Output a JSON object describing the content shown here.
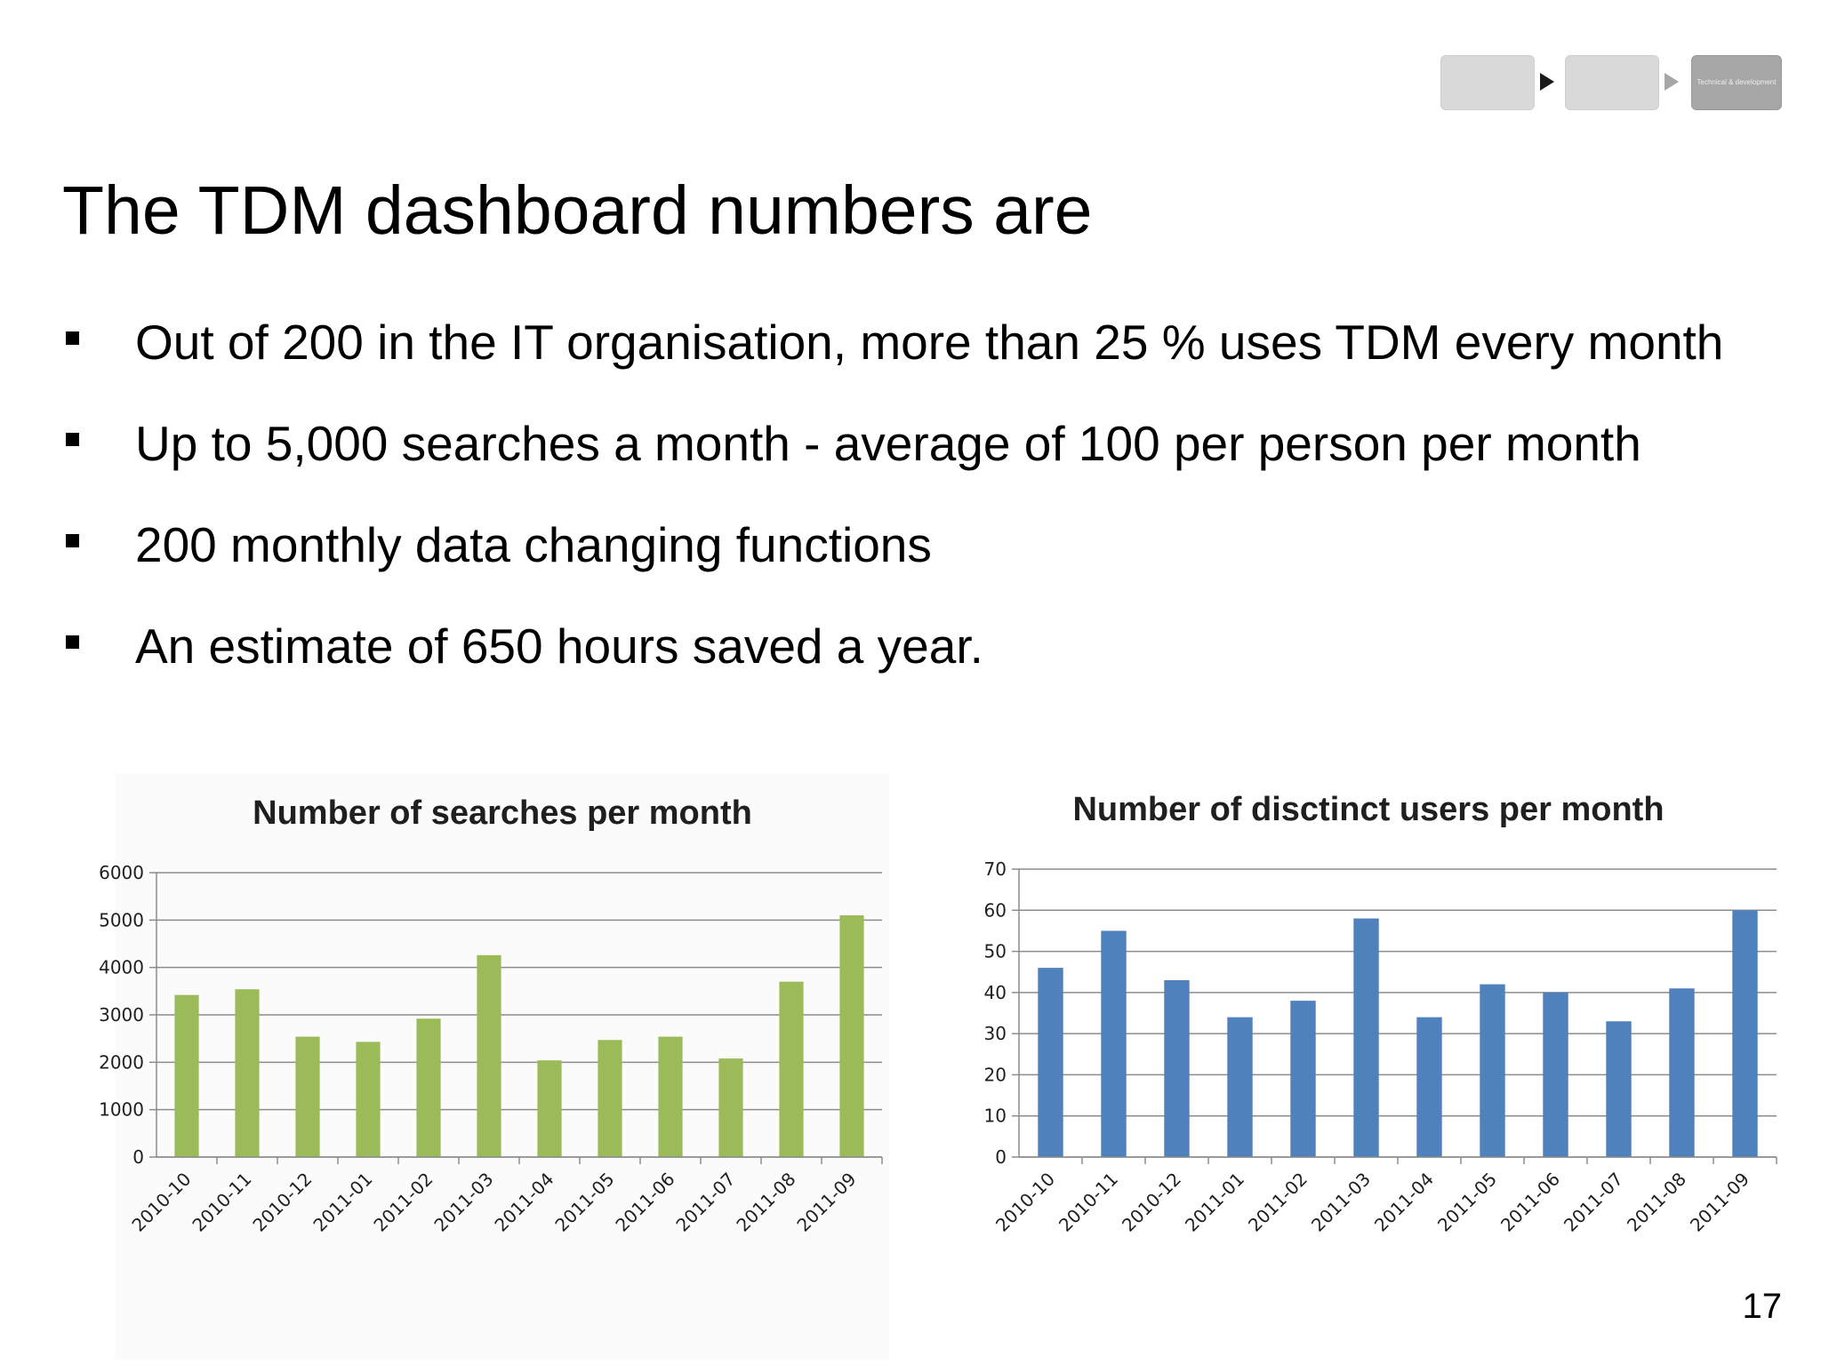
{
  "process": {
    "box3_label": "Technical & development"
  },
  "slide": {
    "title": "The TDM dashboard numbers are",
    "bullets": [
      "Out of 200 in the IT organisation, more than 25 % uses TDM every month",
      "Up to 5,000 searches a month - average of 100 per person per month",
      "200 monthly data changing functions",
      "An estimate of 650 hours saved a year."
    ],
    "page_number": "17"
  },
  "colors": {
    "green_bar": "#9bbb59",
    "blue_bar": "#4f81bd"
  },
  "chart_data": [
    {
      "type": "bar",
      "title": "Number of searches per month",
      "categories": [
        "2010-10",
        "2010-11",
        "2010-12",
        "2011-01",
        "2011-02",
        "2011-03",
        "2011-04",
        "2011-05",
        "2011-06",
        "2011-07",
        "2011-08",
        "2011-09"
      ],
      "values": [
        3420,
        3540,
        2540,
        2430,
        2920,
        4260,
        2040,
        2470,
        2540,
        2080,
        3700,
        5100
      ],
      "ylim": [
        0,
        6000
      ],
      "yticks": [
        0,
        1000,
        2000,
        3000,
        4000,
        5000,
        6000
      ],
      "grid": true,
      "legend": "none",
      "color": "#9bbb59"
    },
    {
      "type": "bar",
      "title": "Number of disctinct users per month",
      "categories": [
        "2010-10",
        "2010-11",
        "2010-12",
        "2011-01",
        "2011-02",
        "2011-03",
        "2011-04",
        "2011-05",
        "2011-06",
        "2011-07",
        "2011-08",
        "2011-09"
      ],
      "values": [
        46,
        55,
        43,
        34,
        38,
        58,
        34,
        42,
        40,
        33,
        41,
        60
      ],
      "ylim": [
        0,
        70
      ],
      "yticks": [
        0,
        10,
        20,
        30,
        40,
        50,
        60,
        70
      ],
      "grid": true,
      "legend": "none",
      "color": "#4f81bd"
    }
  ]
}
